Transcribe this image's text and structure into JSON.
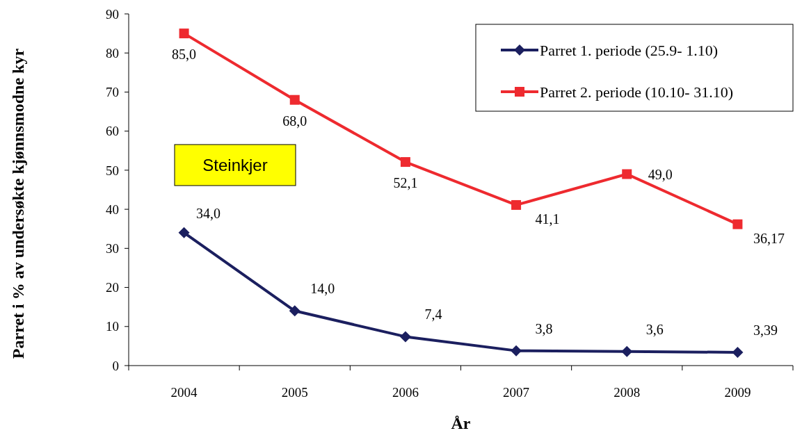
{
  "chart_data": {
    "type": "line",
    "categories": [
      "2004",
      "2005",
      "2006",
      "2007",
      "2008",
      "2009"
    ],
    "xlabel": "År",
    "ylabel": "Parret i % av undersøkte kjønnsmodne kyr",
    "ylim": [
      0,
      90
    ],
    "yticks": [
      0,
      10,
      20,
      30,
      40,
      50,
      60,
      70,
      80,
      90
    ],
    "grid": false,
    "legend": "top right",
    "annotations": [
      "Steinkjer"
    ],
    "series": [
      {
        "name": "Parret 1. periode (25.9- 1.10)",
        "color": "#1b1f5f",
        "marker": "diamond",
        "values": [
          34.0,
          14.0,
          7.4,
          3.8,
          3.6,
          3.39
        ],
        "value_labels": [
          "34,0",
          "14,0",
          "7,4",
          "3,8",
          "3,6",
          "3,39"
        ]
      },
      {
        "name": "Parret 2. periode (10.10- 31.10)",
        "color": "#ee2a2f",
        "marker": "square",
        "values": [
          85.0,
          68.0,
          52.1,
          41.1,
          49.0,
          36.17
        ],
        "value_labels": [
          "85,0",
          "68,0",
          "52,1",
          "41,1",
          "49,0",
          "36,17"
        ]
      }
    ]
  }
}
